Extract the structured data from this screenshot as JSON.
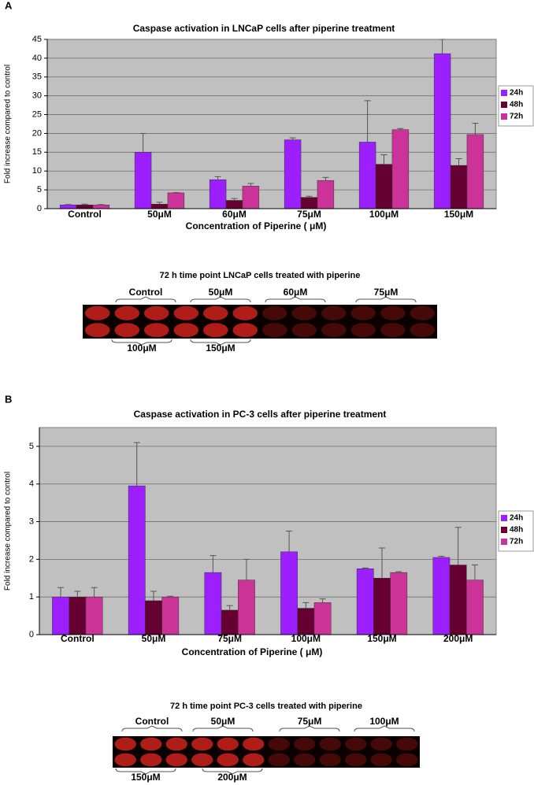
{
  "chart_data": [
    {
      "type": "bar",
      "title": "Caspase activation in LNCaP cells after piperine treatment",
      "x_label": "Concentration of Piperine ( μM)",
      "y_label": "Fold increase compared to control",
      "categories": [
        "Control",
        "50μM",
        "60μM",
        "75μM",
        "100μM",
        "150μM"
      ],
      "series": [
        {
          "name": "24h",
          "color": "#9b1fff",
          "values": [
            1,
            15,
            7.7,
            18.3,
            17.7,
            41.2
          ],
          "errors": [
            0.1,
            5,
            0.8,
            0.5,
            11,
            3.8
          ]
        },
        {
          "name": "48h",
          "color": "#660033",
          "values": [
            1,
            1.2,
            2.2,
            3,
            11.8,
            11.5
          ],
          "errors": [
            0.2,
            0.5,
            0.5,
            0.3,
            2.5,
            1.8
          ]
        },
        {
          "name": "72h",
          "color": "#cc3399",
          "values": [
            1,
            4.2,
            6,
            7.5,
            21,
            19.7
          ],
          "errors": [
            0.1,
            0.1,
            0.7,
            0.8,
            0.3,
            3
          ]
        }
      ],
      "ylim": [
        0,
        45
      ],
      "yticks": [
        0,
        5,
        10,
        15,
        20,
        25,
        30,
        35,
        40,
        45
      ],
      "grid": true,
      "legend": "right"
    },
    {
      "type": "bar",
      "title": "Caspase activation in PC-3 cells after piperine treatment",
      "x_label": "Concentration of Piperine ( μM)",
      "y_label": "Fold increase compared to control",
      "categories": [
        "Control",
        "50μM",
        "75μM",
        "100μM",
        "150μM",
        "200μM"
      ],
      "series": [
        {
          "name": "24h",
          "color": "#9b1fff",
          "values": [
            1,
            3.95,
            1.65,
            2.2,
            1.75,
            2.05
          ],
          "errors": [
            0.25,
            1.15,
            0.45,
            0.55,
            0.02,
            0.03
          ]
        },
        {
          "name": "48h",
          "color": "#660033",
          "values": [
            1,
            0.9,
            0.65,
            0.7,
            1.5,
            1.85
          ],
          "errors": [
            0.15,
            0.25,
            0.12,
            0.15,
            0.8,
            1
          ]
        },
        {
          "name": "72h",
          "color": "#cc3399",
          "values": [
            1,
            1,
            1.45,
            0.85,
            1.65,
            1.45
          ],
          "errors": [
            0.25,
            0.02,
            0.55,
            0.1,
            0.02,
            0.4
          ]
        }
      ],
      "ylim": [
        0,
        5.5
      ],
      "yticks": [
        0,
        1,
        2,
        3,
        4,
        5
      ],
      "grid": true,
      "legend": "right"
    }
  ],
  "panels": [
    {
      "label": "A",
      "image_title": "72 h time point LNCaP cells treated with piperine",
      "top_labels": [
        "Control",
        "50μM",
        "60μM",
        "75μM"
      ],
      "bottom_labels": [
        "100μM",
        "150μM"
      ]
    },
    {
      "label": "B",
      "image_title": "72 h time point PC-3 cells treated with piperine",
      "top_labels": [
        "Control",
        "50μM",
        "75μM",
        "100μM"
      ],
      "bottom_labels": [
        "150μM",
        "200μM"
      ]
    }
  ]
}
